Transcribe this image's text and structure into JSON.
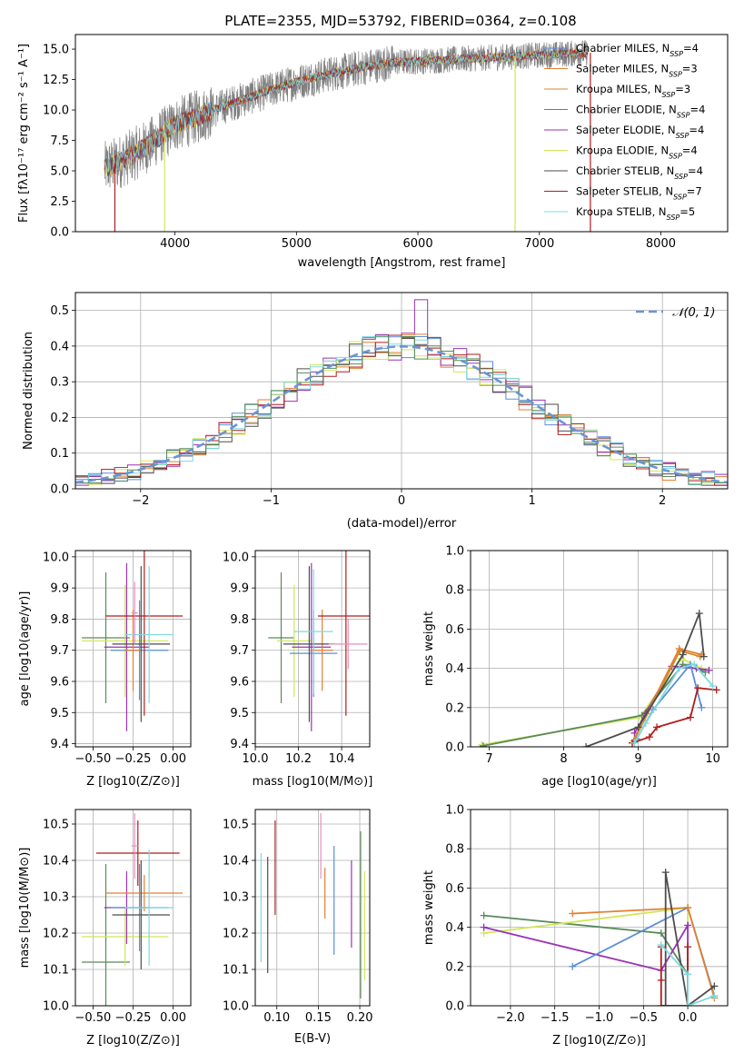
{
  "figure": {
    "title": "PLATE=2355, MJD=53792, FIBERID=0364, z=0.108"
  },
  "colors": {
    "Chabrier MILES": "#5b8fd6",
    "Salpeter MILES": "#e37f30",
    "Kroupa MILES": "#d48a2a",
    "Chabrier ELODIE": "#5a8a5a",
    "Salpeter ELODIE": "#9a32b5",
    "Kroupa ELODIE": "#d2e65a",
    "Chabrier STELIB": "#4d4d4d",
    "Salpeter STELIB": "#b01c1c",
    "Kroupa STELIB": "#7fd9e0",
    "data": "#808080",
    "pink": "#e88fc0",
    "gauss": "#6a95d6"
  },
  "chart_data": [
    {
      "id": "spectrum",
      "type": "line",
      "title": "PLATE=2355, MJD=53792, FIBERID=0364, z=0.108",
      "xlabel": "wavelength [Angstrom, rest frame]",
      "ylabel": "Flux [fλ10⁻¹⁷ erg cm⁻² s⁻¹ A⁻¹]",
      "xlim": [
        3180,
        8550
      ],
      "ylim": [
        0,
        16.2
      ],
      "xticks": [
        4000,
        5000,
        6000,
        7000,
        8000
      ],
      "yticks": [
        0.0,
        2.5,
        5.0,
        7.5,
        10.0,
        12.5,
        15.0
      ],
      "grid": false,
      "legend_position": "right",
      "legend": [
        "Chabrier MILES, N_SSP=4",
        "Salpeter MILES, N_SSP=3",
        "Kroupa MILES, N_SSP=3",
        "Chabrier ELODIE, N_SSP=4",
        "Salpeter ELODIE, N_SSP=4",
        "Kroupa ELODIE, N_SSP=4",
        "Chabrier STELIB, N_SSP=4",
        "Salpeter STELIB, N_SSP=7",
        "Kroupa STELIB, N_SSP=5"
      ],
      "continuum": [
        [
          3420,
          5.2
        ],
        [
          3600,
          6.0
        ],
        [
          3800,
          7.2
        ],
        [
          3900,
          8.0
        ],
        [
          4000,
          8.8
        ],
        [
          4200,
          9.5
        ],
        [
          4400,
          10.3
        ],
        [
          4600,
          11.0
        ],
        [
          4800,
          11.7
        ],
        [
          5000,
          12.3
        ],
        [
          5200,
          12.8
        ],
        [
          5400,
          13.2
        ],
        [
          5600,
          13.6
        ],
        [
          5800,
          13.9
        ],
        [
          6000,
          14.0
        ],
        [
          6200,
          14.1
        ],
        [
          6400,
          14.2
        ],
        [
          6600,
          14.3
        ],
        [
          6800,
          14.4
        ],
        [
          7000,
          14.5
        ],
        [
          7200,
          14.6
        ],
        [
          7400,
          14.7
        ]
      ],
      "drops": [
        3505,
        3915,
        6800,
        7420
      ]
    },
    {
      "id": "residuals",
      "type": "area",
      "xlabel": "(data-model)/error",
      "ylabel": "Normed distribution",
      "xlim": [
        -2.5,
        2.5
      ],
      "ylim": [
        0,
        0.55
      ],
      "xticks": [
        -2,
        -1,
        0,
        1,
        2
      ],
      "yticks": [
        0.0,
        0.1,
        0.2,
        0.3,
        0.4,
        0.5
      ],
      "grid": true,
      "legend_position": "top-right",
      "gauss_label": "𝒩(0, 1)"
    },
    {
      "id": "age_vs_Z",
      "type": "scatter",
      "xlabel": "Z [log10(Z/Z⊙)]",
      "ylabel": "age  [log10(age/yr)]",
      "xlim": [
        -0.61,
        0.11
      ],
      "ylim": [
        9.39,
        10.02
      ],
      "xticks": [
        -0.5,
        -0.25,
        0.0
      ],
      "yticks": [
        9.4,
        9.5,
        9.6,
        9.7,
        9.8,
        9.9,
        10.0
      ],
      "grid": true,
      "points": [
        {
          "series": "Chabrier ELODIE",
          "x": -0.42,
          "xerr": 0.15,
          "y": 9.74,
          "yerr": 0.21
        },
        {
          "series": "Kroupa ELODIE",
          "x": -0.3,
          "xerr": 0.27,
          "y": 9.73,
          "yerr": 0.18
        },
        {
          "series": "Salpeter ELODIE",
          "x": -0.29,
          "xerr": 0.14,
          "y": 9.71,
          "yerr": 0.27
        },
        {
          "series": "Chabrier MILES",
          "x": -0.21,
          "xerr": 0.18,
          "y": 9.7,
          "yerr": 0.16
        },
        {
          "series": "Salpeter MILES",
          "x": -0.25,
          "xerr": 0.05,
          "y": 9.7,
          "yerr": 0.13
        },
        {
          "series": "Salpeter STELIB",
          "x": -0.18,
          "xerr": 0.24,
          "y": 9.81,
          "yerr": 0.32
        },
        {
          "series": "Chabrier STELIB",
          "x": -0.2,
          "xerr": 0.18,
          "y": 9.72,
          "yerr": 0.25
        },
        {
          "series": "Kroupa STELIB",
          "x": -0.15,
          "xerr": 0.15,
          "y": 9.75,
          "yerr": 0.22
        },
        {
          "series": "pink",
          "x": -0.24,
          "xerr": 0.02,
          "y": 9.82,
          "yerr": 0.1
        }
      ]
    },
    {
      "id": "age_vs_mass",
      "type": "scatter",
      "xlabel": "mass [log10(M/M⊙)]",
      "ylabel": "",
      "xlim": [
        10.0,
        10.53
      ],
      "ylim": [
        9.39,
        10.02
      ],
      "xticks": [
        10.0,
        10.2,
        10.4
      ],
      "yticks": [
        9.4,
        9.5,
        9.6,
        9.7,
        9.8,
        9.9,
        10.0
      ],
      "grid": true,
      "points": [
        {
          "series": "Chabrier ELODIE",
          "x": 10.12,
          "xerr": 0.06,
          "y": 9.74,
          "yerr": 0.21
        },
        {
          "series": "Kroupa ELODIE",
          "x": 10.18,
          "xerr": 0.08,
          "y": 9.73,
          "yerr": 0.18
        },
        {
          "series": "Salpeter ELODIE",
          "x": 10.26,
          "xerr": 0.09,
          "y": 9.71,
          "yerr": 0.27
        },
        {
          "series": "Chabrier MILES",
          "x": 10.27,
          "xerr": 0.11,
          "y": 9.69,
          "yerr": 0.14
        },
        {
          "series": "Salpeter MILES",
          "x": 10.31,
          "xerr": 0.05,
          "y": 9.7,
          "yerr": 0.13
        },
        {
          "series": "Salpeter STELIB",
          "x": 10.42,
          "xerr": 0.13,
          "y": 9.81,
          "yerr": 0.32
        },
        {
          "series": "Chabrier STELIB",
          "x": 10.25,
          "xerr": 0.12,
          "y": 9.72,
          "yerr": 0.25
        },
        {
          "series": "Kroupa STELIB",
          "x": 10.27,
          "xerr": 0.09,
          "y": 9.76,
          "yerr": 0.2
        },
        {
          "series": "pink",
          "x": 10.43,
          "xerr": 0.09,
          "y": 9.72,
          "yerr": 0.08
        }
      ]
    },
    {
      "id": "massweight_vs_age",
      "type": "line",
      "xlabel": "age  [log10(age/yr)]",
      "ylabel": "mass weight",
      "xlim": [
        6.75,
        10.2
      ],
      "ylim": [
        0,
        1.0
      ],
      "xticks": [
        7,
        8,
        9,
        10
      ],
      "yticks": [
        0.0,
        0.2,
        0.4,
        0.6,
        0.8,
        1.0
      ],
      "grid": true,
      "series": [
        {
          "name": "Kroupa ELODIE",
          "x": [
            6.9,
            9.02,
            9.58,
            9.85
          ],
          "y": [
            0.01,
            0.15,
            0.45,
            0.4
          ]
        },
        {
          "name": "Chabrier ELODIE",
          "x": [
            6.92,
            9.05,
            9.6,
            9.9
          ],
          "y": [
            0.005,
            0.16,
            0.42,
            0.38
          ]
        },
        {
          "name": "Salpeter ELODIE",
          "x": [
            8.95,
            9.1,
            9.45,
            9.78,
            9.95
          ],
          "y": [
            0.07,
            0.17,
            0.41,
            0.4,
            0.39
          ]
        },
        {
          "name": "Chabrier MILES",
          "x": [
            8.98,
            9.2,
            9.7,
            9.85
          ],
          "y": [
            0.04,
            0.19,
            0.42,
            0.2
          ]
        },
        {
          "name": "Salpeter MILES",
          "x": [
            8.92,
            9.55,
            9.85
          ],
          "y": [
            0.02,
            0.5,
            0.47
          ]
        },
        {
          "name": "Kroupa MILES",
          "x": [
            8.94,
            9.56,
            9.83
          ],
          "y": [
            0.03,
            0.49,
            0.46
          ]
        },
        {
          "name": "Chabrier STELIB",
          "x": [
            8.3,
            9.0,
            9.6,
            9.82,
            9.88
          ],
          "y": [
            0.0,
            0.1,
            0.47,
            0.68,
            0.46
          ]
        },
        {
          "name": "Salpeter STELIB",
          "x": [
            8.92,
            9.15,
            9.25,
            9.7,
            9.8,
            10.05
          ],
          "y": [
            0.02,
            0.05,
            0.1,
            0.15,
            0.3,
            0.29
          ]
        },
        {
          "name": "Kroupa STELIB",
          "x": [
            8.95,
            9.1,
            9.55,
            9.75,
            10.0
          ],
          "y": [
            0.02,
            0.12,
            0.4,
            0.42,
            0.31
          ]
        }
      ]
    },
    {
      "id": "mass_vs_Z",
      "type": "scatter",
      "xlabel": "Z [log10(Z/Z⊙)]",
      "ylabel": "mass [log10(M/M⊙)]",
      "xlim": [
        -0.61,
        0.11
      ],
      "ylim": [
        10.0,
        10.54
      ],
      "xticks": [
        -0.5,
        -0.25,
        0.0
      ],
      "yticks": [
        10.0,
        10.1,
        10.2,
        10.3,
        10.4,
        10.5
      ],
      "grid": true,
      "points": [
        {
          "series": "Chabrier ELODIE",
          "x": -0.42,
          "xerr": 0.15,
          "y": 10.12,
          "yerr": 0.27
        },
        {
          "series": "Kroupa ELODIE",
          "x": -0.3,
          "xerr": 0.27,
          "y": 10.19,
          "yerr": 0.08
        },
        {
          "series": "Salpeter ELODIE",
          "x": -0.29,
          "xerr": 0.14,
          "y": 10.27,
          "yerr": 0.1
        },
        {
          "series": "Chabrier MILES",
          "x": -0.21,
          "xerr": 0.18,
          "y": 10.27,
          "yerr": 0.12
        },
        {
          "series": "Salpeter MILES",
          "x": -0.18,
          "xerr": 0.24,
          "y": 10.31,
          "yerr": 0.05
        },
        {
          "series": "Salpeter STELIB",
          "x": -0.22,
          "xerr": 0.26,
          "y": 10.42,
          "yerr": 0.09
        },
        {
          "series": "Chabrier STELIB",
          "x": -0.2,
          "xerr": 0.18,
          "y": 10.25,
          "yerr": 0.15
        },
        {
          "series": "Kroupa STELIB",
          "x": -0.15,
          "xerr": 0.15,
          "y": 10.27,
          "yerr": 0.16
        },
        {
          "series": "pink",
          "x": -0.24,
          "xerr": 0.02,
          "y": 10.44,
          "yerr": 0.09
        }
      ]
    },
    {
      "id": "mass_vs_ebv",
      "type": "scatter",
      "xlabel": "E(B-V)",
      "ylabel": "",
      "xlim": [
        0.074,
        0.212
      ],
      "ylim": [
        10.0,
        10.54
      ],
      "xticks": [
        0.1,
        0.15,
        0.2
      ],
      "yticks": [
        10.0,
        10.1,
        10.2,
        10.3,
        10.4,
        10.5
      ],
      "grid": true,
      "points": [
        {
          "series": "Kroupa STELIB",
          "x": 0.081,
          "y": 10.27,
          "yerr": 0.15
        },
        {
          "series": "Chabrier STELIB",
          "x": 0.089,
          "y": 10.25,
          "yerr": 0.16
        },
        {
          "series": "Salpeter STELIB",
          "x": 0.098,
          "y": 10.38,
          "yerr": 0.13
        },
        {
          "series": "pink",
          "x": 0.153,
          "y": 10.44,
          "yerr": 0.09
        },
        {
          "series": "Salpeter MILES",
          "x": 0.158,
          "y": 10.31,
          "yerr": 0.07
        },
        {
          "series": "Chabrier MILES",
          "x": 0.169,
          "y": 10.29,
          "yerr": 0.15
        },
        {
          "series": "Salpeter ELODIE",
          "x": 0.19,
          "y": 10.28,
          "yerr": 0.12
        },
        {
          "series": "Chabrier ELODIE",
          "x": 0.201,
          "y": 10.25,
          "yerr": 0.23
        },
        {
          "series": "Kroupa ELODIE",
          "x": 0.206,
          "y": 10.22,
          "yerr": 0.15
        }
      ]
    },
    {
      "id": "massweight_vs_Z",
      "type": "line",
      "xlabel": "Z [log10(Z/Z⊙)]",
      "ylabel": "mass weight",
      "xlim": [
        -2.45,
        0.45
      ],
      "ylim": [
        0,
        1.0
      ],
      "xticks": [
        -2.0,
        -1.5,
        -1.0,
        -0.5,
        0.0
      ],
      "yticks": [
        0.0,
        0.2,
        0.4,
        0.6,
        0.8,
        1.0
      ],
      "grid": true,
      "series": [
        {
          "name": "Chabrier ELODIE",
          "x": [
            -2.3,
            -0.3,
            0.0
          ],
          "y": [
            0.46,
            0.37,
            0.16
          ]
        },
        {
          "name": "Kroupa ELODIE",
          "x": [
            -2.3,
            0.0,
            0.0
          ],
          "y": [
            0.37,
            0.5,
            0.0
          ]
        },
        {
          "name": "Salpeter ELODIE",
          "x": [
            -2.3,
            -0.3,
            0.0,
            0.0
          ],
          "y": [
            0.4,
            0.18,
            0.41,
            0.0
          ]
        },
        {
          "name": "Chabrier MILES",
          "x": [
            -1.3,
            0.0,
            0.3
          ],
          "y": [
            0.2,
            0.5,
            0.05
          ]
        },
        {
          "name": "Salpeter MILES",
          "x": [
            -1.3,
            0.0,
            0.3
          ],
          "y": [
            0.47,
            0.5,
            0.04
          ]
        },
        {
          "name": "Chabrier STELIB",
          "x": [
            -0.25,
            -0.25,
            0.0,
            0.3
          ],
          "y": [
            0.0,
            0.68,
            0.0,
            0.1
          ]
        },
        {
          "name": "Salpeter STELIB",
          "x": [
            -0.3,
            -0.3,
            -0.3,
            0.0,
            0.0
          ],
          "y": [
            0.3,
            0.13,
            0.0,
            0.0,
            0.3
          ]
        },
        {
          "name": "Kroupa STELIB",
          "x": [
            -0.3,
            0.0,
            0.0,
            0.3
          ],
          "y": [
            0.31,
            0.16,
            0.0,
            0.05
          ]
        }
      ]
    }
  ]
}
